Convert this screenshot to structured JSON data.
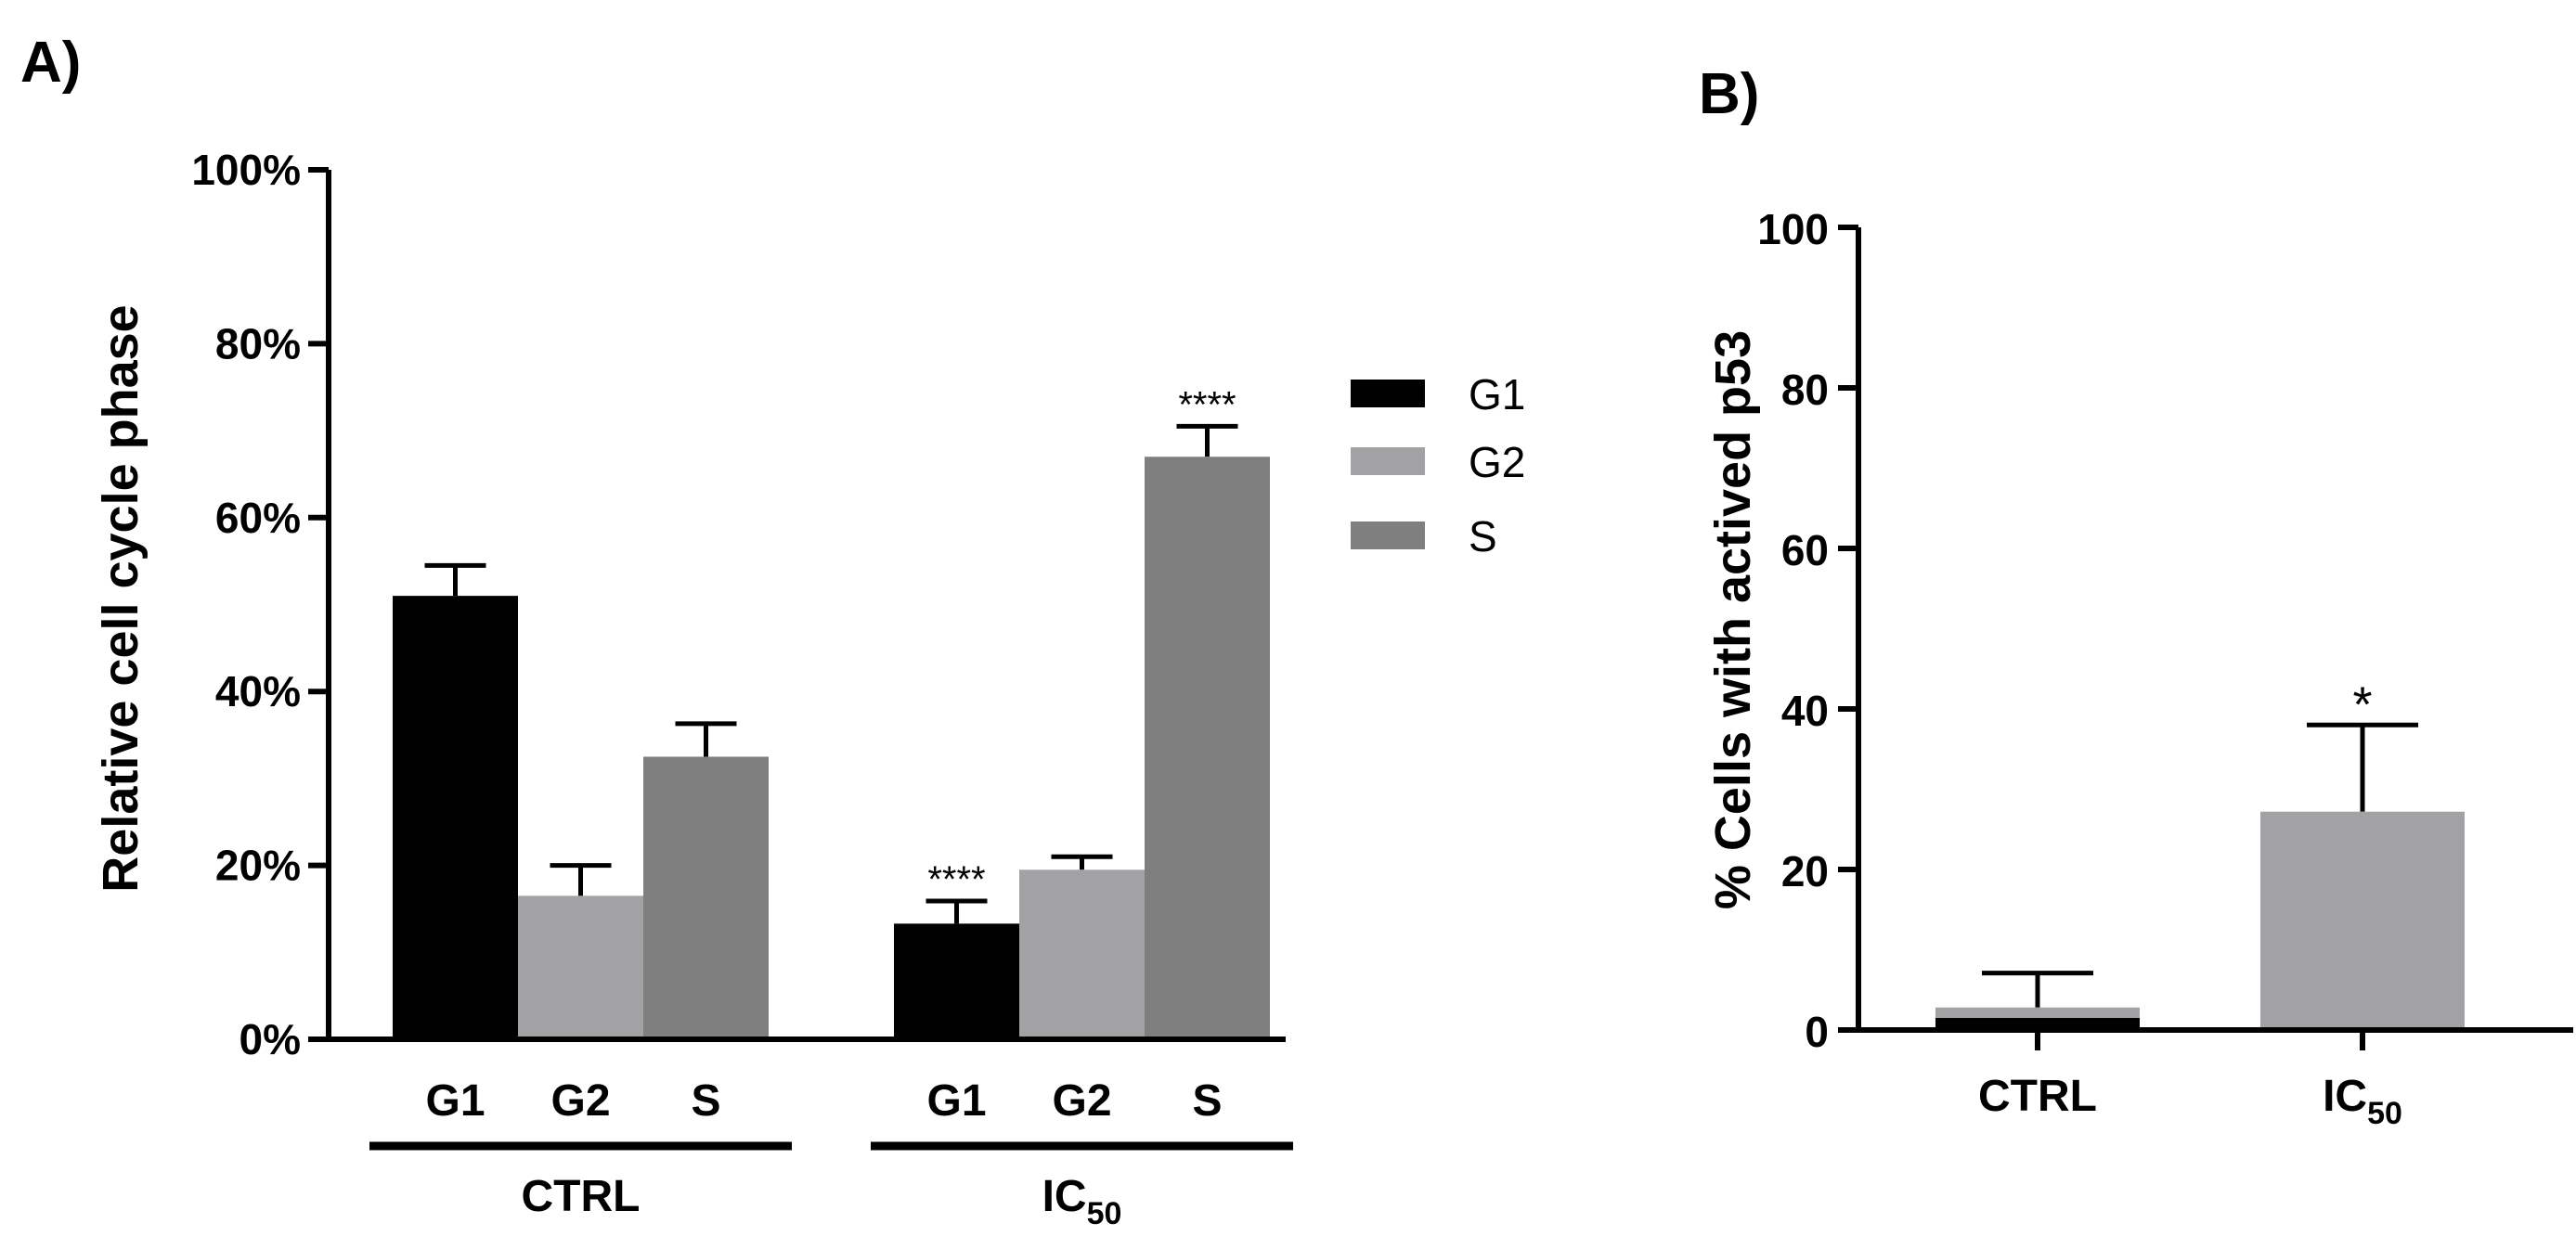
{
  "panel_a_label": "A)",
  "panel_b_label": "B)",
  "chart_data": [
    {
      "type": "bar",
      "panel": "A",
      "ylabel": "Relative cell cycle phase",
      "ylim": [
        0,
        100
      ],
      "yticks": [
        "0%",
        "20%",
        "40%",
        "60%",
        "80%",
        "100%"
      ],
      "ytick_values": [
        0,
        20,
        40,
        60,
        80,
        100
      ],
      "groups": [
        {
          "name": "CTRL",
          "name_sub": "",
          "bars": [
            {
              "category": "G1",
              "value": 51,
              "error": 3.5,
              "sig": "",
              "color": "#000000"
            },
            {
              "category": "G2",
              "value": 16.5,
              "error": 3.5,
              "sig": "",
              "color": "#a2a2a5"
            },
            {
              "category": "S",
              "value": 32.5,
              "error": 3.8,
              "sig": "",
              "color": "#7f7f7f"
            }
          ]
        },
        {
          "name": "IC",
          "name_sub": "50",
          "bars": [
            {
              "category": "G1",
              "value": 13.3,
              "error": 2.6,
              "sig": "****",
              "color": "#000000"
            },
            {
              "category": "G2",
              "value": 19.5,
              "error": 1.5,
              "sig": "",
              "color": "#a2a2a5"
            },
            {
              "category": "S",
              "value": 67,
              "error": 3.5,
              "sig": "****",
              "color": "#7f7f7f"
            }
          ]
        }
      ],
      "legend": [
        {
          "label": "G1",
          "color": "#000000"
        },
        {
          "label": "G2",
          "color": "#a2a2a5"
        },
        {
          "label": "S",
          "color": "#7f7f7f"
        }
      ],
      "legend_position": "right"
    },
    {
      "type": "bar",
      "panel": "B",
      "ylabel": "% Cells with actived  p53",
      "ylim": [
        0,
        100
      ],
      "yticks": [
        "0",
        "20",
        "40",
        "60",
        "80",
        "100"
      ],
      "ytick_values": [
        0,
        20,
        40,
        60,
        80,
        100
      ],
      "bars": [
        {
          "category": "CTRL",
          "category_sub": "",
          "value": 2.8,
          "error": 4.3,
          "inner_value": 1.5,
          "sig": "",
          "color": "#a2a2a5"
        },
        {
          "category": "IC",
          "category_sub": "50",
          "value": 27.2,
          "error": 10.8,
          "sig": "*",
          "color": "#a2a2a5"
        }
      ]
    }
  ]
}
